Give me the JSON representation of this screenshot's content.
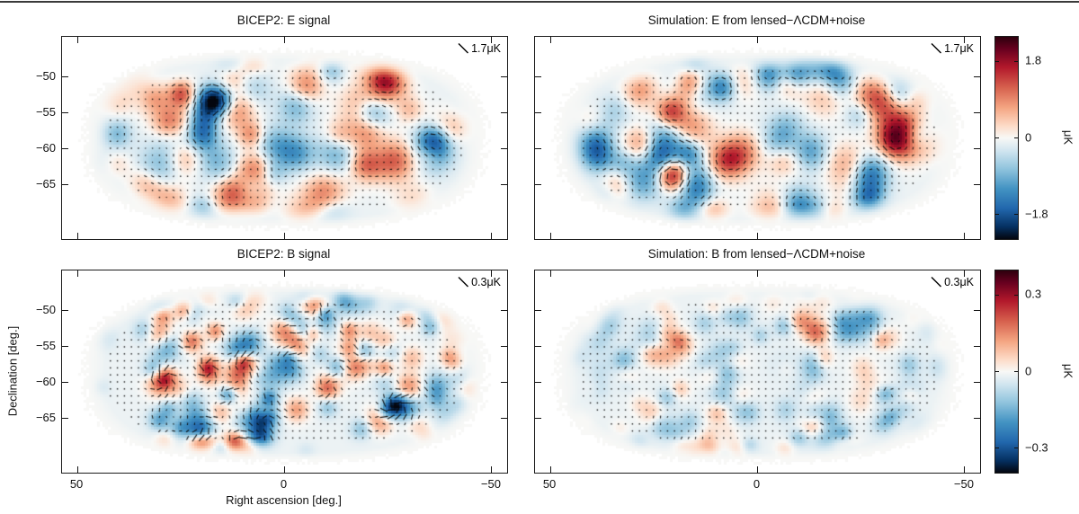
{
  "page": {
    "background": "#ffffff",
    "top_rule_color": "#3a3a3a"
  },
  "chart_data": {
    "type": "heatmap",
    "subtype": "CMB polarization maps (color amplitude field + polarization pseudo-vector segments)",
    "panels": [
      {
        "id": "bicep2_E",
        "title": "BICEP2: E signal",
        "scale_vector_label": "1.7μK",
        "mode": "E",
        "source": "observation",
        "row": 0,
        "col": 0
      },
      {
        "id": "sim_E",
        "title": "Simulation: E from lensed−ΛCDM+noise",
        "scale_vector_label": "1.7μK",
        "mode": "E",
        "source": "simulation",
        "row": 0,
        "col": 1
      },
      {
        "id": "bicep2_B",
        "title": "BICEP2: B signal",
        "scale_vector_label": "0.3μK",
        "mode": "B",
        "source": "observation",
        "row": 1,
        "col": 0
      },
      {
        "id": "sim_B",
        "title": "Simulation: B from lensed−ΛCDM+noise",
        "scale_vector_label": "0.3μK",
        "mode": "B",
        "source": "simulation",
        "row": 1,
        "col": 1
      }
    ],
    "axes": {
      "x": {
        "label": "Right ascension [deg.]",
        "range": [
          53.7,
          -53.7
        ],
        "ticks": [
          {
            "v": 50,
            "label": "50"
          },
          {
            "v": 0,
            "label": "0"
          },
          {
            "v": -50,
            "label": "−50"
          }
        ]
      },
      "y": {
        "label": "Declination [deg.]",
        "range": [
          -44.4,
          -72.5
        ],
        "ticks": [
          {
            "v": -50,
            "label": "−50"
          },
          {
            "v": -55,
            "label": "−55"
          },
          {
            "v": -60,
            "label": "−60"
          },
          {
            "v": -65,
            "label": "−65"
          }
        ]
      }
    },
    "colorbars": [
      {
        "row": 0,
        "unit": "μK",
        "range": [
          -2.37,
          2.37
        ],
        "ticks": [
          {
            "v": 1.8,
            "label": "1.8"
          },
          {
            "v": 0,
            "label": "0"
          },
          {
            "v": -1.8,
            "label": "−1.8"
          }
        ]
      },
      {
        "row": 1,
        "unit": "μK",
        "range": [
          -0.395,
          0.395
        ],
        "ticks": [
          {
            "v": 0.3,
            "label": "0.3"
          },
          {
            "v": 0,
            "label": "0"
          },
          {
            "v": -0.3,
            "label": "−0.3"
          }
        ]
      }
    ],
    "colormap_stops": [
      {
        "t": 0.0,
        "color": "#04060f"
      },
      {
        "t": 0.06,
        "color": "#053061"
      },
      {
        "t": 0.15,
        "color": "#2166ac"
      },
      {
        "t": 0.25,
        "color": "#4393c3"
      },
      {
        "t": 0.35,
        "color": "#92c5de"
      },
      {
        "t": 0.44,
        "color": "#d3e6f0"
      },
      {
        "t": 0.5,
        "color": "#f8f8f6"
      },
      {
        "t": 0.56,
        "color": "#fddbc7"
      },
      {
        "t": 0.65,
        "color": "#f4a582"
      },
      {
        "t": 0.75,
        "color": "#d6604d"
      },
      {
        "t": 0.85,
        "color": "#b2182b"
      },
      {
        "t": 0.94,
        "color": "#67001f"
      },
      {
        "t": 1.0,
        "color": "#2d000d"
      }
    ],
    "legend_note": "Diagonal tick in each panel corner indicates the polarization vector length scale."
  }
}
